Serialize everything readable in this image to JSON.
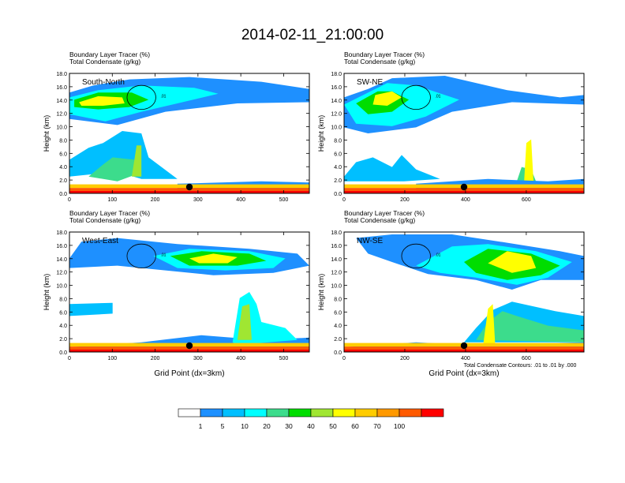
{
  "title": "2014-02-11_21:00:00",
  "panel_subtitle_1": "Boundary Layer Tracer   (%)",
  "panel_subtitle_2": "Total Condensate   (g/kg)",
  "ylabel": "Height (km)",
  "xlabel": "Grid Point (dx=3km)",
  "contour_note": "Total Condensate Contours: .01 to .01 by .000",
  "contour_label": ".01",
  "chart_data": [
    {
      "type": "heatmap",
      "panel": "South-North",
      "title": "South-North",
      "xlabel": "",
      "ylabel": "Height (km)",
      "xlim": [
        0,
        560
      ],
      "ylim": [
        0,
        18
      ],
      "xticks": [
        "0",
        "100",
        "200",
        "300",
        "400",
        "500"
      ],
      "yticks": [
        "0.0",
        "2.0",
        "4.0",
        "6.0",
        "8.0",
        "10.0",
        "12.0",
        "14.0",
        "16.0",
        "18.0"
      ],
      "marker_x": 280
    },
    {
      "type": "heatmap",
      "panel": "SW-NE",
      "title": "SW-NE",
      "xlabel": "",
      "ylabel": "Height (km)",
      "xlim": [
        0,
        790
      ],
      "ylim": [
        0,
        18
      ],
      "xticks": [
        "0",
        "200",
        "400",
        "600"
      ],
      "yticks": [
        "0.0",
        "2.0",
        "4.0",
        "6.0",
        "8.0",
        "10.0",
        "12.0",
        "14.0",
        "16.0",
        "18.0"
      ],
      "marker_x": 395
    },
    {
      "type": "heatmap",
      "panel": "West-East",
      "title": "West-East",
      "xlabel": "Grid Point (dx=3km)",
      "ylabel": "Height (km)",
      "xlim": [
        0,
        560
      ],
      "ylim": [
        0,
        18
      ],
      "xticks": [
        "0",
        "100",
        "200",
        "300",
        "400",
        "500"
      ],
      "yticks": [
        "0.0",
        "2.0",
        "4.0",
        "6.0",
        "8.0",
        "10.0",
        "12.0",
        "14.0",
        "16.0",
        "18.0"
      ],
      "marker_x": 280
    },
    {
      "type": "heatmap",
      "panel": "NW-SE",
      "title": "NW-SE",
      "xlabel": "Grid Point (dx=3km)",
      "ylabel": "Height (km)",
      "xlim": [
        0,
        790
      ],
      "ylim": [
        0,
        18
      ],
      "xticks": [
        "0",
        "200",
        "400",
        "600"
      ],
      "yticks": [
        "0.0",
        "2.0",
        "4.0",
        "6.0",
        "8.0",
        "10.0",
        "12.0",
        "14.0",
        "16.0",
        "18.0"
      ],
      "marker_x": 395
    }
  ],
  "colorbar": {
    "labels": [
      "1",
      "5",
      "10",
      "20",
      "30",
      "40",
      "50",
      "60",
      "70",
      "100"
    ],
    "colors": [
      "#ffffff",
      "#1e90ff",
      "#00bfff",
      "#00ffff",
      "#3cdc8c",
      "#00dd00",
      "#a0e632",
      "#ffff00",
      "#ffcc00",
      "#ff9900",
      "#ff5a00",
      "#ff0000"
    ]
  }
}
